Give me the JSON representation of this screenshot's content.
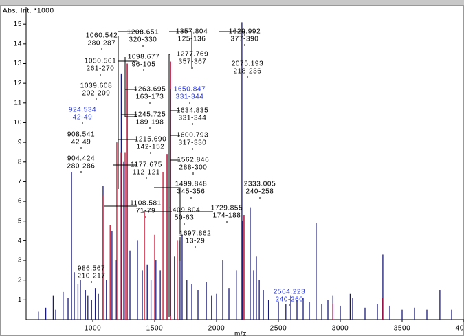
{
  "chart_data": {
    "type": "spectrum",
    "y_label": "Abs. Int. *1000",
    "x_label": "m/z",
    "xlim": [
      461,
      4000
    ],
    "ylim": [
      0,
      15.6
    ],
    "xticks": [
      1000,
      1500,
      2000,
      2500,
      3000,
      3500,
      4000
    ],
    "yticks": [
      1,
      2,
      3,
      4,
      5,
      6,
      7,
      8,
      9,
      10,
      11,
      12,
      13,
      14,
      15
    ],
    "series": [
      {
        "color": "#1a1a7a",
        "x": [
          560,
          620,
          680,
          700,
          760,
          800,
          828,
          850,
          880,
          900,
          940,
          960,
          990,
          1020,
          1045,
          1083,
          1110,
          1155,
          1190,
          1230,
          1250,
          1278,
          1300,
          1361,
          1400,
          1440,
          1470,
          1510,
          1545,
          1600,
          1628,
          1660,
          1705,
          1722,
          1760,
          1800,
          1850,
          1917,
          1960,
          2000,
          2050,
          2100,
          2160,
          2205,
          2212,
          2222,
          2272,
          2300,
          2322,
          2345,
          2378,
          2420,
          2500,
          2560,
          2600,
          2650,
          2700,
          2750,
          2805,
          2850,
          2900,
          2940,
          3000,
          3080,
          3100,
          3200,
          3300,
          3344,
          3400,
          3500,
          3600,
          3700,
          3805,
          3900
        ],
        "values": [
          0.4,
          0.6,
          1.2,
          0.5,
          1.4,
          1.1,
          7.5,
          2.4,
          1.8,
          2.0,
          1.5,
          1.2,
          1.0,
          1.6,
          1.3,
          6.8,
          2.0,
          4.5,
          3.0,
          12.5,
          8.0,
          13.0,
          3.5,
          4.0,
          2.5,
          2.8,
          2.0,
          3.0,
          2.5,
          8.4,
          13.1,
          3.2,
          4.0,
          4.3,
          2.0,
          1.8,
          1.5,
          1.9,
          1.2,
          1.3,
          3.0,
          1.6,
          2.5,
          15.1,
          5.0,
          5.3,
          5.7,
          2.5,
          3.2,
          2.0,
          1.5,
          1.0,
          0.9,
          0.8,
          1.2,
          1.0,
          1.1,
          0.9,
          4.9,
          0.8,
          1.0,
          1.2,
          0.7,
          1.3,
          1.1,
          0.6,
          0.8,
          3.3,
          0.7,
          0.5,
          0.6,
          0.5,
          1.5,
          0.5
        ]
      },
      {
        "color": "#d01030",
        "x": [
          1083,
          1140,
          1194,
          1228,
          1261,
          1278,
          1417,
          1500,
          1567,
          1600,
          1628,
          1683,
          2222,
          2939,
          3339
        ],
        "values": [
          6.3,
          4.8,
          9.0,
          8.5,
          8.5,
          13.0,
          5.5,
          4.3,
          7.5,
          8.4,
          13.1,
          4.0,
          5.3,
          0.8,
          1.1
        ]
      }
    ],
    "annotations": [
      {
        "mz": "1060.542",
        "range": "280-287",
        "color": "#000000"
      },
      {
        "mz": "1208.651",
        "range": "320-330",
        "color": "#000000"
      },
      {
        "mz": "1357.804",
        "range": "125-136",
        "color": "#000000"
      },
      {
        "mz": "1629.992",
        "range": "377-390",
        "color": "#000000"
      },
      {
        "mz": "1050.561",
        "range": "261-270",
        "color": "#000000"
      },
      {
        "mz": "1098.677",
        "range": "96-105",
        "color": "#000000"
      },
      {
        "mz": "1277.769",
        "range": "357-367",
        "color": "#000000"
      },
      {
        "mz": "2075.193",
        "range": "218-236",
        "color": "#000000"
      },
      {
        "mz": "1039.608",
        "range": "202-209",
        "color": "#000000"
      },
      {
        "mz": "1263.695",
        "range": "163-173",
        "color": "#000000"
      },
      {
        "mz": "1650.847",
        "range": "331-344",
        "color": "#2233dd"
      },
      {
        "mz": "924.534",
        "range": "42-49",
        "color": "#2233dd"
      },
      {
        "mz": "1634.835",
        "range": "331-344",
        "color": "#000000"
      },
      {
        "mz": "1245.725",
        "range": "189-198",
        "color": "#000000"
      },
      {
        "mz": "908.541",
        "range": "42-49",
        "color": "#000000"
      },
      {
        "mz": "1600.793",
        "range": "317-330",
        "color": "#000000"
      },
      {
        "mz": "1215.690",
        "range": "142-152",
        "color": "#000000"
      },
      {
        "mz": "904.424",
        "range": "280-286",
        "color": "#000000"
      },
      {
        "mz": "1562.846",
        "range": "288-300",
        "color": "#000000"
      },
      {
        "mz": "1177.675",
        "range": "112-121",
        "color": "#000000"
      },
      {
        "mz": "1499.848",
        "range": "345-356",
        "color": "#000000"
      },
      {
        "mz": "2333.005",
        "range": "240-258",
        "color": "#000000"
      },
      {
        "mz": "1108.581",
        "range": "71-79",
        "color": "#000000"
      },
      {
        "mz": "1409.804",
        "range": "50-63",
        "color": "#000000"
      },
      {
        "mz": "1729.855",
        "range": "174-188",
        "color": "#000000"
      },
      {
        "mz": "1697.862",
        "range": "13-29",
        "color": "#000000"
      },
      {
        "mz": "986.567",
        "range": "210-217",
        "color": "#000000"
      },
      {
        "mz": "2564.223",
        "range": "240-260",
        "color": "#2233dd"
      }
    ]
  }
}
